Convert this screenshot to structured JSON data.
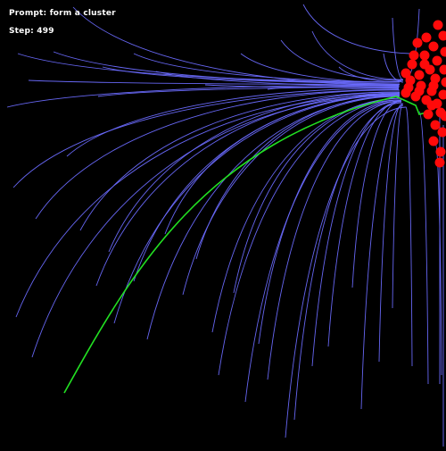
{
  "hud": {
    "prompt_prefix": "Prompt:",
    "prompt_text": "form a cluster",
    "step_prefix": "Step:",
    "step_value": "499"
  },
  "colors": {
    "background": "#000000",
    "trail": "#6b6bff",
    "highlight_trail": "#22e022",
    "agent": "#ff0a0a",
    "text": "#ffffff"
  }
}
